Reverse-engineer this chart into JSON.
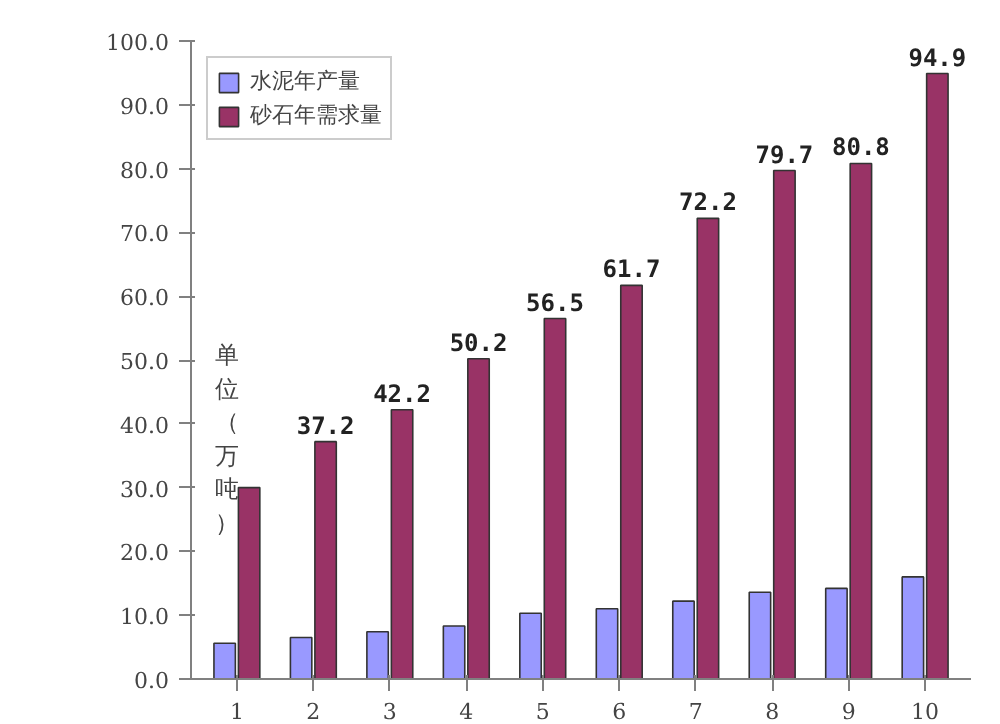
{
  "chart_data": {
    "type": "bar",
    "ylabel": "单位（万吨）",
    "categories": [
      "1",
      "2",
      "3",
      "4",
      "5",
      "6",
      "7",
      "8",
      "9",
      "10"
    ],
    "series": [
      {
        "name": "水泥年产量",
        "color": "#9999ff",
        "values": [
          5.6,
          6.5,
          7.4,
          8.3,
          10.3,
          11.0,
          12.2,
          13.6,
          14.2,
          16.0
        ]
      },
      {
        "name": "砂石年需求量",
        "color": "#993366",
        "values": [
          30,
          37.2,
          42.2,
          50.2,
          56.5,
          61.7,
          72.2,
          79.7,
          80.8,
          94.9
        ],
        "value_labels": [
          null,
          "37.2",
          "42.2",
          "50.2",
          "56.5",
          "61.7",
          "72.2",
          "79.7",
          "80.8",
          "94.9"
        ]
      }
    ],
    "ylim": [
      0,
      100
    ],
    "yticks": [
      {
        "value": 0,
        "label": "0.0"
      },
      {
        "value": 10,
        "label": "10.0"
      },
      {
        "value": 20,
        "label": "20.0"
      },
      {
        "value": 30,
        "label": "30.0"
      },
      {
        "value": 40,
        "label": "40.0"
      },
      {
        "value": 50,
        "label": "50.0"
      },
      {
        "value": 60,
        "label": "60.0"
      },
      {
        "value": 70,
        "label": "70.0"
      },
      {
        "value": 80,
        "label": "80.0"
      },
      {
        "value": 90,
        "label": "90.0"
      },
      {
        "value": 100,
        "label": "100.0"
      }
    ],
    "grid": false,
    "legend": "top left"
  }
}
